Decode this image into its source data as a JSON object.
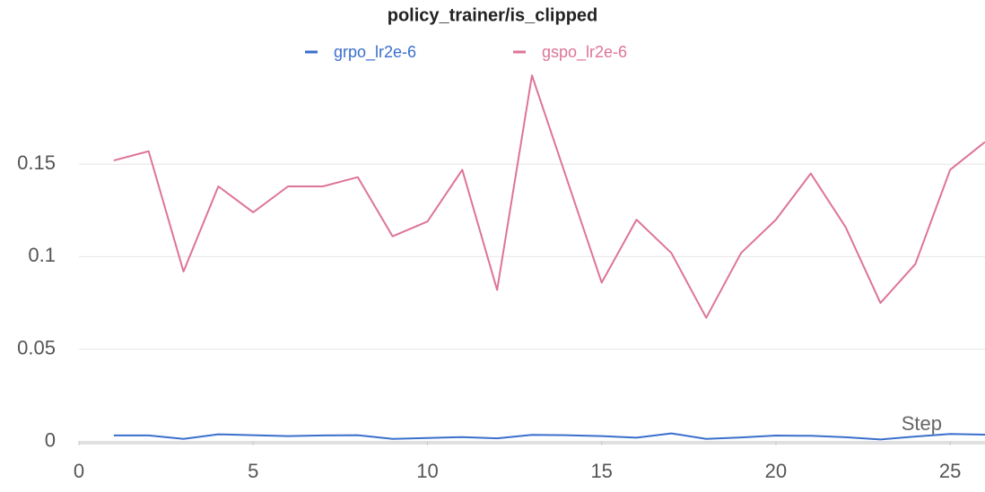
{
  "chart_data": {
    "type": "line",
    "title": "policy_trainer/is_clipped",
    "x_label": "Step",
    "x": [
      1,
      2,
      3,
      4,
      5,
      6,
      7,
      8,
      9,
      10,
      11,
      12,
      13,
      14,
      15,
      16,
      17,
      18,
      19,
      20,
      21,
      22,
      23,
      24,
      25,
      26
    ],
    "series": [
      {
        "name": "grpo_lr2e-6",
        "color": "#3a6fcc",
        "values": [
          0.0034,
          0.0034,
          0.0015,
          0.004,
          0.0035,
          0.003,
          0.0034,
          0.0035,
          0.0015,
          0.002,
          0.0025,
          0.0018,
          0.0037,
          0.0035,
          0.003,
          0.0022,
          0.0045,
          0.0015,
          0.0023,
          0.0033,
          0.0032,
          0.0024,
          0.0012,
          0.0028,
          0.0042,
          0.0038
        ]
      },
      {
        "name": "gspo_lr2e-6",
        "color": "#dd7499",
        "values": [
          0.152,
          0.157,
          0.092,
          0.138,
          0.124,
          0.138,
          0.138,
          0.143,
          0.111,
          0.119,
          0.147,
          0.082,
          0.198,
          0.142,
          0.086,
          0.12,
          0.102,
          0.067,
          0.102,
          0.12,
          0.145,
          0.116,
          0.075,
          0.096,
          0.147,
          0.162
        ]
      }
    ],
    "xlim": [
      0,
      26
    ],
    "xticks": [
      0,
      5,
      10,
      15,
      20,
      25
    ],
    "ylim": [
      -0.002,
      0.2
    ],
    "yticks": [
      0,
      0.05,
      0.1,
      0.15
    ],
    "grid": true
  }
}
